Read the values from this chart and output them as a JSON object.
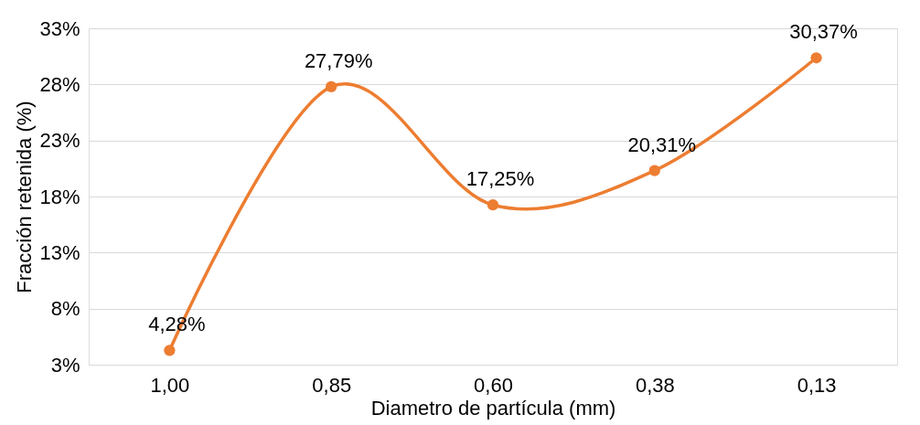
{
  "chart_data": {
    "type": "line",
    "xlabel": "Diametro de partícula (mm)",
    "ylabel": "Fracción retenida (%)",
    "categories": [
      "1,00",
      "0,85",
      "0,60",
      "0,38",
      "0,13"
    ],
    "series": [
      {
        "color": "#ed7d31",
        "values": [
          4.28,
          27.79,
          17.25,
          20.31,
          30.37
        ],
        "value_labels": [
          "4,28%",
          "27,79%",
          "17,25%",
          "20,31%",
          "30,37%"
        ]
      }
    ],
    "ylim": [
      3,
      33
    ],
    "yticks": [
      {
        "value": 3,
        "label": "3%"
      },
      {
        "value": 8,
        "label": "8%"
      },
      {
        "value": 13,
        "label": "13%"
      },
      {
        "value": 18,
        "label": "18%"
      },
      {
        "value": 23,
        "label": "23%"
      },
      {
        "value": 28,
        "label": "28%"
      },
      {
        "value": 33,
        "label": "33%"
      }
    ],
    "grid": "y",
    "marker": "circle",
    "line_style": "solid"
  }
}
